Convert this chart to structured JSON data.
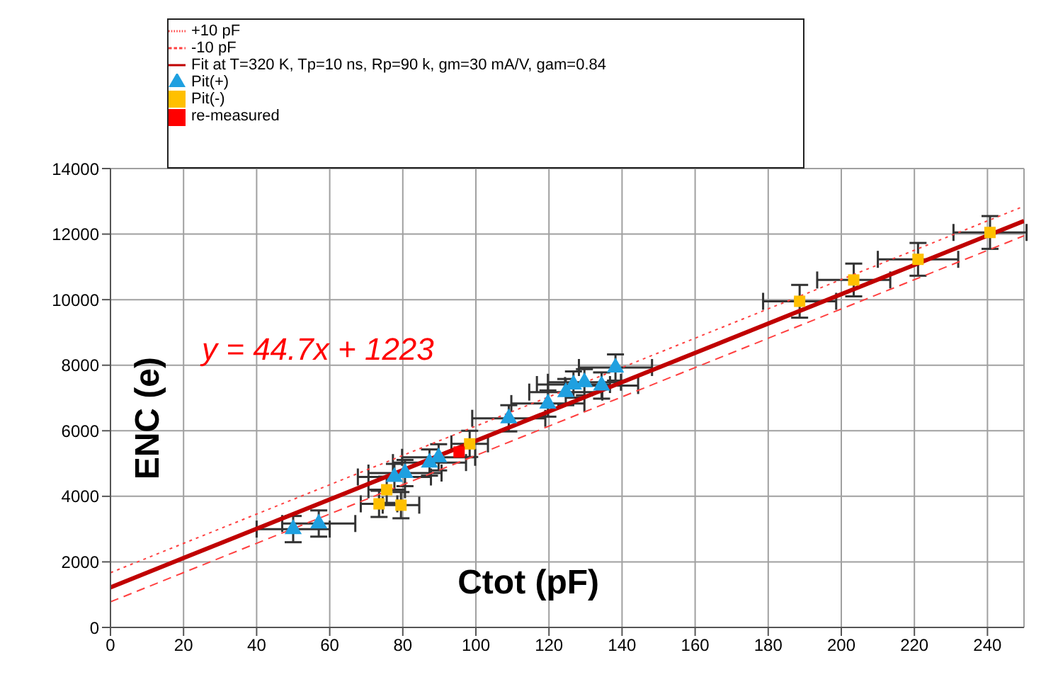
{
  "chart_data": {
    "type": "scatter",
    "xlabel": "Ctot (pF)",
    "ylabel": "ENC (e)",
    "xlim": [
      0,
      250
    ],
    "xticks": [
      0,
      20,
      40,
      60,
      80,
      100,
      120,
      140,
      160,
      180,
      200,
      220,
      240
    ],
    "ylim": [
      0,
      14000
    ],
    "yticks": [
      0,
      2000,
      4000,
      6000,
      8000,
      10000,
      12000,
      14000
    ],
    "grid": true,
    "legend": "top",
    "annotations": [
      "y = 44.7x + 1223"
    ],
    "series": [
      {
        "name": "Pit(+)",
        "marker": "triangle",
        "color": "#1fa0e0",
        "x": [
          50,
          57,
          77.7,
          80.6,
          87.3,
          89.8,
          109,
          119.7,
          124.6,
          126.7,
          129.7,
          134.4,
          138.2
        ],
        "values": [
          3000,
          3170,
          4590,
          4710,
          5030,
          5190,
          6380,
          6830,
          7180,
          7410,
          7480,
          7380,
          7930
        ],
        "errors": [
          400,
          400,
          400,
          400,
          400,
          400,
          400,
          400,
          400,
          400,
          400,
          400,
          400
        ],
        "xerrors": [
          10,
          10,
          10,
          10,
          10,
          10,
          10,
          10,
          10,
          10,
          10,
          10,
          10
        ]
      },
      {
        "name": "Pit(-)",
        "marker": "square",
        "color": "#ffc000",
        "x": [
          75.6,
          73.5,
          79.5,
          98.3,
          188.6,
          203.4,
          221,
          240.7
        ],
        "values": [
          4200,
          3770,
          3730,
          5600,
          9950,
          10600,
          11230,
          12050
        ],
        "errors": [
          400,
          400,
          400,
          400,
          500,
          500,
          500,
          500
        ],
        "xerrors": [
          5,
          5,
          5,
          5,
          10,
          10,
          11,
          10
        ]
      },
      {
        "name": "Fit at T=320 K, Tp=10 ns, Rp=90 k, gm=30 mA/V, gam=0.84",
        "type": "line",
        "line_style": "solid",
        "color": "#c00000",
        "x": [
          0,
          250
        ],
        "values": [
          1223,
          12400
        ]
      },
      {
        "name": "re-measured",
        "marker": "square",
        "color": "#ff0000",
        "x": [
          95.4
        ],
        "values": [
          5350
        ]
      },
      {
        "name": "-10 pF",
        "type": "line",
        "line_style": "dashed",
        "color": "#ff4040",
        "x": [
          0,
          250
        ],
        "values": [
          780,
          11950
        ]
      },
      {
        "name": "+10 pF",
        "type": "line",
        "line_style": "dotted",
        "color": "#ff4040",
        "x": [
          0,
          250
        ],
        "values": [
          1670,
          12850
        ]
      }
    ]
  }
}
